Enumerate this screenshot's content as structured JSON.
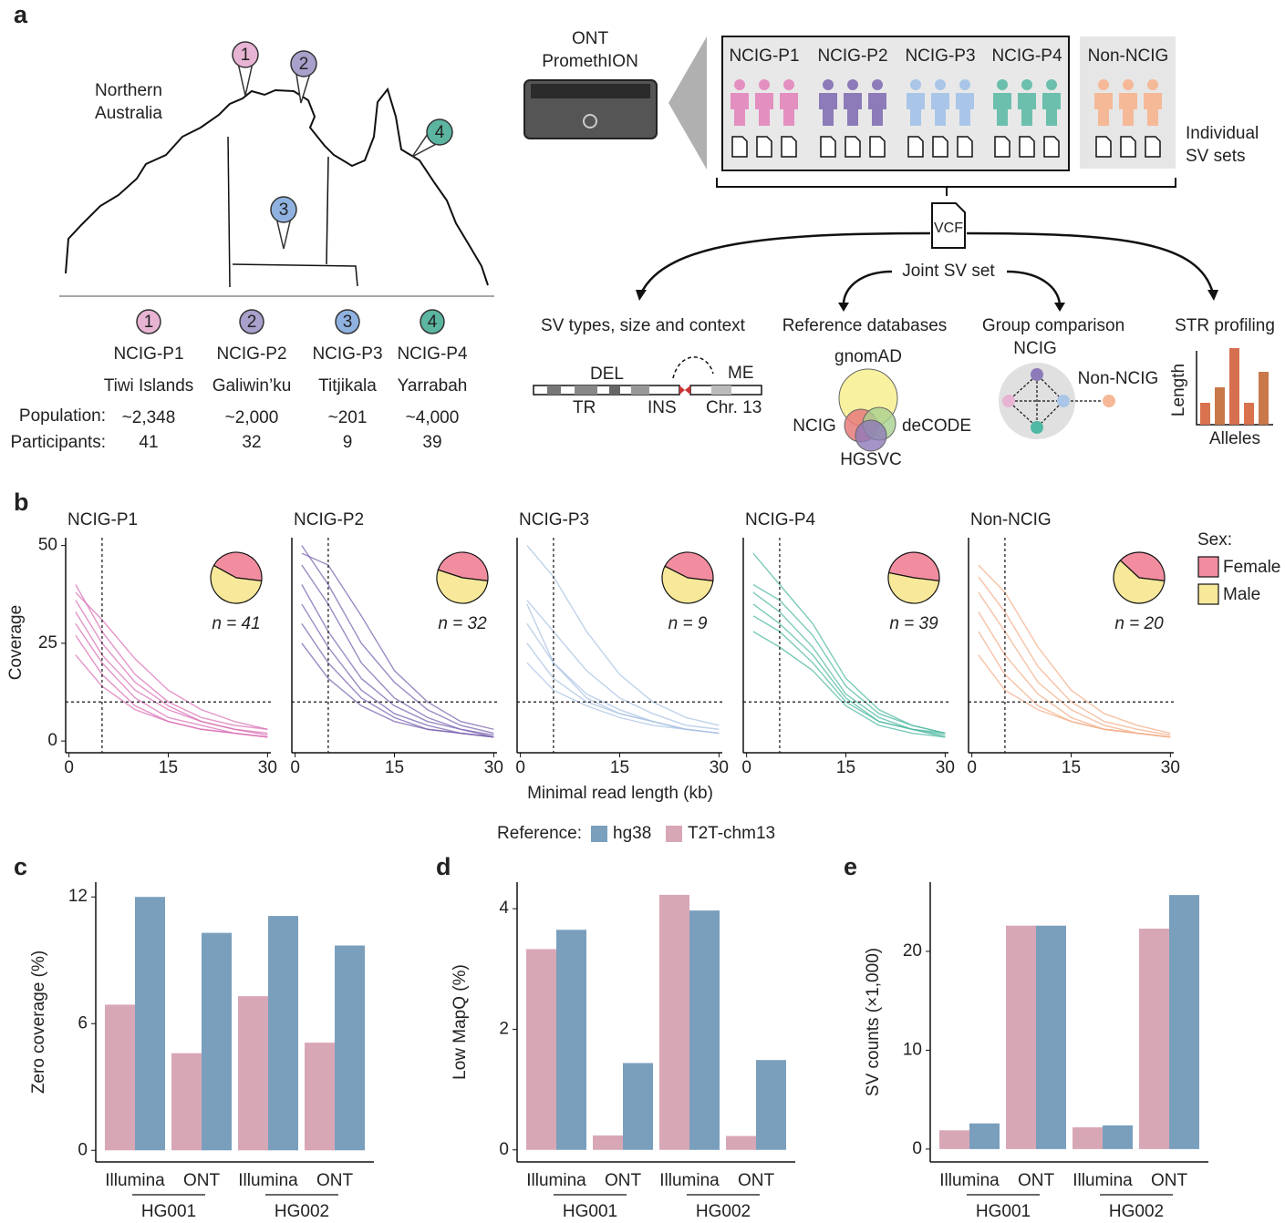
{
  "panel_labels": [
    "a",
    "b",
    "c",
    "d",
    "e"
  ],
  "map": {
    "region": [
      "Northern",
      "Australia"
    ],
    "row_labels": [
      "Population:",
      "Participants:"
    ],
    "sites": [
      {
        "number": 1,
        "group": "NCIG-P1",
        "place": "Tiwi Islands",
        "population": "~2,348",
        "participants": 41,
        "color": "#e8b4d4"
      },
      {
        "number": 2,
        "group": "NCIG-P2",
        "place": "Galiwin’ku",
        "population": "~2,000",
        "participants": 32,
        "color": "#a9a0cc"
      },
      {
        "number": 3,
        "group": "NCIG-P3",
        "place": "Titjikala",
        "population": "~201",
        "participants": 9,
        "color": "#8fb2e0"
      },
      {
        "number": 4,
        "group": "NCIG-P4",
        "place": "Yarrabah",
        "population": "~4,000",
        "participants": 39,
        "color": "#5bb5a0"
      }
    ]
  },
  "workflow": {
    "sequencer": [
      "ONT",
      "PromethION"
    ],
    "groups": [
      {
        "name": "NCIG-P1",
        "color": "#e38fc0"
      },
      {
        "name": "NCIG-P2",
        "color": "#8c7bb8"
      },
      {
        "name": "NCIG-P3",
        "color": "#a9c6e8"
      },
      {
        "name": "NCIG-P4",
        "color": "#6cbfad"
      },
      {
        "name": "Non-NCIG",
        "color": "#f5b998"
      }
    ],
    "sv_sets_label": [
      "Individual",
      "SV sets"
    ],
    "vcf": "VCF",
    "joint": "Joint SV set",
    "analyses": [
      "SV types, size and context",
      "Reference databases",
      "Group comparison",
      "STR profiling"
    ],
    "sv_diagram": {
      "del": "DEL",
      "tr": "TR",
      "ins": "INS",
      "me": "ME",
      "chr": "Chr. 13"
    },
    "venn": {
      "gnomad": "gnomAD",
      "ncig": "NCIG",
      "decode": "deCODE",
      "hgsvc": "HGSVC"
    },
    "group_comparison": {
      "ncig": "NCIG",
      "non": "Non-NCIG"
    },
    "str": {
      "y": "Length",
      "x": "Alleles"
    }
  },
  "chart_data": [
    {
      "type": "line",
      "title": "NCIG-P1",
      "color": "#d970b5",
      "ylabel": "Coverage",
      "x": [
        1,
        5,
        10,
        15,
        20,
        25,
        30
      ],
      "xlim": [
        -0.5,
        30.5
      ],
      "ylim": [
        -3,
        52
      ],
      "xticks": [
        0,
        15,
        30
      ],
      "yticks": [
        0,
        25,
        50
      ],
      "ref_x": 5,
      "ref_y": 10,
      "lines": [
        [
          40,
          28,
          17,
          10,
          6,
          4,
          3
        ],
        [
          36,
          25,
          15,
          9,
          5,
          3,
          2
        ],
        [
          33,
          22,
          13,
          8,
          5,
          3,
          1.5
        ],
        [
          30,
          20,
          11,
          6,
          4,
          2,
          1
        ],
        [
          27,
          17,
          9,
          5,
          3,
          2,
          1
        ],
        [
          22,
          14,
          8,
          5,
          3,
          2,
          1
        ],
        [
          38,
          31,
          21,
          13,
          8,
          5,
          3
        ]
      ],
      "pie": [
        18,
        23
      ],
      "pie_label": "n = 41"
    },
    {
      "type": "line",
      "title": "NCIG-P2",
      "color": "#7b63b0",
      "x": [
        1,
        5,
        10,
        15,
        20,
        25,
        30
      ],
      "xlim": [
        -0.5,
        30.5
      ],
      "ylim": [
        -3,
        52
      ],
      "xticks": [
        0,
        15,
        30
      ],
      "ref_x": 5,
      "ref_y": 10,
      "lines": [
        [
          50,
          40,
          25,
          15,
          8,
          4,
          2
        ],
        [
          45,
          35,
          20,
          11,
          6,
          3,
          1.5
        ],
        [
          40,
          28,
          16,
          9,
          5,
          3,
          1
        ],
        [
          35,
          24,
          13,
          7,
          4,
          2,
          1
        ],
        [
          30,
          20,
          11,
          6,
          3,
          2,
          1
        ],
        [
          25,
          16,
          9,
          5,
          3,
          2,
          1
        ],
        [
          48,
          45,
          32,
          18,
          10,
          5,
          3
        ]
      ],
      "pie": [
        15,
        17
      ],
      "pie_label": "n = 32"
    },
    {
      "type": "line",
      "title": "NCIG-P3",
      "color": "#a9c3e3",
      "xlabel": "Minimal read length (kb)",
      "x": [
        1,
        5,
        10,
        15,
        20,
        25,
        30
      ],
      "xlim": [
        -0.5,
        30.5
      ],
      "ylim": [
        -3,
        52
      ],
      "xticks": [
        0,
        15,
        30
      ],
      "ref_x": 5,
      "ref_y": 10,
      "lines": [
        [
          50,
          42,
          28,
          17,
          10,
          6,
          4
        ],
        [
          36,
          28,
          18,
          11,
          7,
          4,
          3
        ],
        [
          30,
          20,
          12,
          8,
          5,
          3,
          2
        ],
        [
          25,
          16,
          10,
          7,
          5,
          3,
          2
        ],
        [
          20,
          13,
          9,
          6,
          4,
          3,
          2
        ],
        [
          35,
          20,
          11,
          7,
          5,
          3,
          2
        ]
      ],
      "pie": [
        4,
        5
      ],
      "pie_label": "n = 9"
    },
    {
      "type": "line",
      "title": "NCIG-P4",
      "color": "#4fb8a2",
      "x": [
        1,
        5,
        10,
        15,
        20,
        25,
        30
      ],
      "xlim": [
        -0.5,
        30.5
      ],
      "ylim": [
        -3,
        52
      ],
      "xticks": [
        0,
        15,
        30
      ],
      "ref_x": 5,
      "ref_y": 10,
      "lines": [
        [
          48,
          40,
          30,
          16,
          8,
          4,
          2
        ],
        [
          40,
          36,
          27,
          14,
          7,
          4,
          2
        ],
        [
          38,
          33,
          24,
          12,
          6,
          3,
          2
        ],
        [
          35,
          30,
          22,
          11,
          5,
          3,
          1.5
        ],
        [
          32,
          28,
          20,
          10,
          5,
          3,
          1
        ],
        [
          28,
          24,
          18,
          9,
          4,
          2,
          1
        ]
      ],
      "pie": [
        19,
        20
      ],
      "pie_label": "n = 39"
    },
    {
      "type": "line",
      "title": "Non-NCIG",
      "color": "#f3ae88",
      "x": [
        1,
        5,
        10,
        15,
        20,
        25,
        30
      ],
      "xlim": [
        -0.5,
        30.5
      ],
      "ylim": [
        -3,
        52
      ],
      "xticks": [
        0,
        15,
        30
      ],
      "ref_x": 5,
      "ref_y": 10,
      "lines": [
        [
          45,
          38,
          24,
          13,
          7,
          4,
          2
        ],
        [
          42,
          33,
          19,
          10,
          5,
          3,
          1.5
        ],
        [
          38,
          28,
          15,
          8,
          4,
          2,
          1
        ],
        [
          33,
          22,
          12,
          6,
          3,
          2,
          1
        ],
        [
          28,
          17,
          9,
          5,
          3,
          2,
          1
        ],
        [
          22,
          13,
          8,
          5,
          3,
          2,
          1
        ]
      ],
      "pie": [
        8,
        12
      ],
      "pie_label": "n = 20",
      "legend": {
        "title": "Sex:",
        "names": [
          "Female",
          "Male"
        ],
        "colors": [
          "#f28da0",
          "#f7e89a"
        ]
      }
    },
    {
      "type": "bar",
      "ylabel": "Zero coverage (%)",
      "categories": [
        "Illumina",
        "ONT",
        "Illumina",
        "ONT"
      ],
      "group_labels": [
        "HG001",
        "HG002"
      ],
      "ylim": [
        -0.55,
        12.7
      ],
      "yticks": [
        0,
        6,
        12
      ],
      "legend_title": "Reference:",
      "series": [
        {
          "name": "T2T-chm13",
          "color": "#d8a7b5",
          "values": [
            6.9,
            4.6,
            7.3,
            5.1
          ]
        },
        {
          "name": "hg38",
          "color": "#7a9fbd",
          "values": [
            12.0,
            10.3,
            11.1,
            9.7
          ]
        }
      ]
    },
    {
      "type": "bar",
      "ylabel": "Low MapQ (%)",
      "categories": [
        "Illumina",
        "ONT",
        "Illumina",
        "ONT"
      ],
      "group_labels": [
        "HG001",
        "HG002"
      ],
      "ylim": [
        -0.2,
        4.44
      ],
      "yticks": [
        0,
        2,
        4
      ],
      "series": [
        {
          "name": "T2T-chm13",
          "color": "#d8a7b5",
          "values": [
            3.33,
            0.24,
            4.23,
            0.23
          ]
        },
        {
          "name": "hg38",
          "color": "#7a9fbd",
          "values": [
            3.65,
            1.44,
            3.97,
            1.49
          ]
        }
      ]
    },
    {
      "type": "bar",
      "ylabel": "SV counts (×1,000)",
      "categories": [
        "Illumina",
        "ONT",
        "Illumina",
        "ONT"
      ],
      "group_labels": [
        "HG001",
        "HG002"
      ],
      "ylim": [
        -1.3,
        27
      ],
      "yticks": [
        0,
        10,
        20
      ],
      "series": [
        {
          "name": "T2T-chm13",
          "color": "#d8a7b5",
          "values": [
            1.9,
            22.6,
            2.2,
            22.3
          ]
        },
        {
          "name": "hg38",
          "color": "#7a9fbd",
          "values": [
            2.6,
            22.6,
            2.4,
            25.7
          ]
        }
      ]
    }
  ]
}
